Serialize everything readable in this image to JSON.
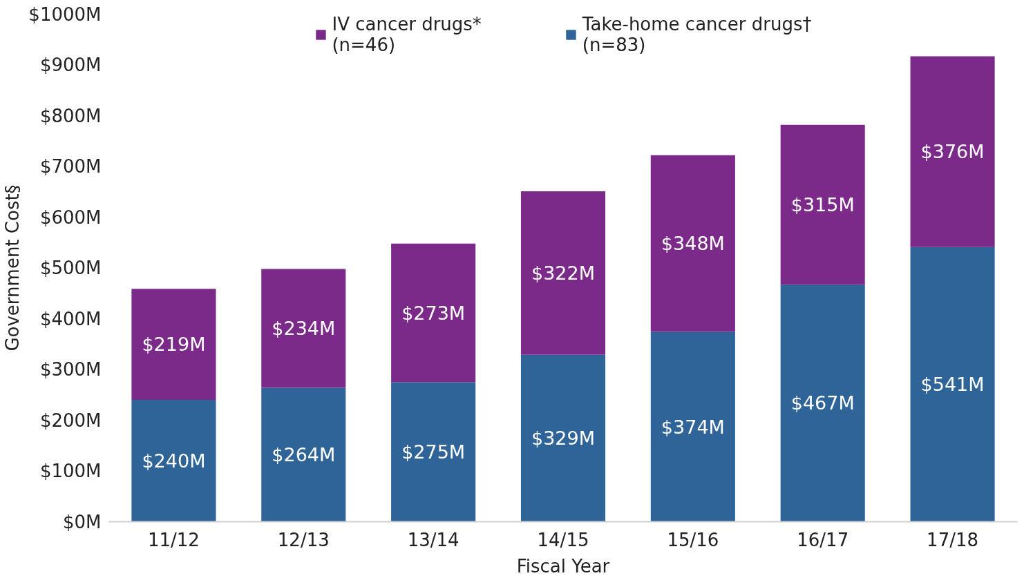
{
  "chart_data": {
    "type": "bar",
    "stacked": true,
    "xlabel": "Fiscal Year",
    "ylabel": "Government Cost§",
    "categories": [
      "11/12",
      "12/13",
      "13/14",
      "14/15",
      "15/16",
      "16/17",
      "17/18"
    ],
    "series": [
      {
        "name": "Take-home cancer drugs†\n(n=83)",
        "color": "#2e6498",
        "values": [
          240,
          264,
          275,
          329,
          374,
          467,
          541
        ],
        "value_labels": [
          "$240M",
          "$264M",
          "$275M",
          "$329M",
          "$374M",
          "$467M",
          "$541M"
        ]
      },
      {
        "name": "IV cancer drugs*\n(n=46)",
        "color": "#7b2a8a",
        "values": [
          219,
          234,
          273,
          322,
          348,
          315,
          376
        ],
        "value_labels": [
          "$219M",
          "$234M",
          "$273M",
          "$322M",
          "$348M",
          "$315M",
          "$376M"
        ]
      }
    ],
    "ylim": [
      0,
      1000
    ],
    "yticks": [
      {
        "value": 0,
        "label": "$0M"
      },
      {
        "value": 100,
        "label": "$100M"
      },
      {
        "value": 200,
        "label": "$200M"
      },
      {
        "value": 300,
        "label": "$300M"
      },
      {
        "value": 400,
        "label": "$400M"
      },
      {
        "value": 500,
        "label": "$500M"
      },
      {
        "value": 600,
        "label": "$600M"
      },
      {
        "value": 700,
        "label": "$700M"
      },
      {
        "value": 800,
        "label": "$800M"
      },
      {
        "value": 900,
        "label": "$900M"
      },
      {
        "value": 1000,
        "label": "$1000M"
      }
    ],
    "grid": false,
    "legend": "top"
  }
}
